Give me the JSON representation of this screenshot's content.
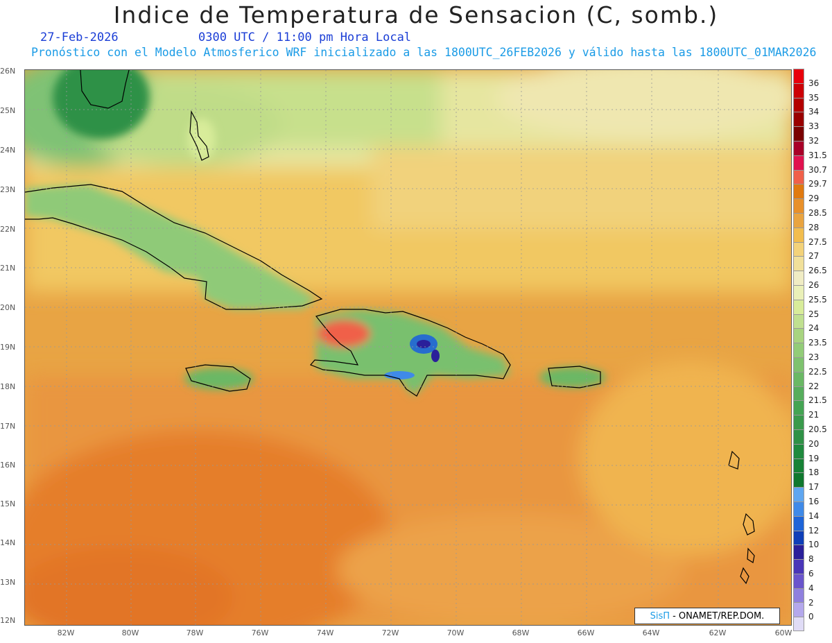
{
  "header": {
    "title": "Indice de Temperatura de Sensacion (C, somb.)",
    "date": "27-Feb-2026",
    "time": "0300 UTC / 11:00 pm Hora Local",
    "subtitle": "Pronóstico con el Modelo Atmosferico WRF inicializado a las 1800UTC_26FEB2026 y válido hasta las  1800UTC_01MAR2026"
  },
  "axes": {
    "lat_labels": [
      "26N",
      "25N",
      "24N",
      "23N",
      "22N",
      "21N",
      "20N",
      "19N",
      "18N",
      "17N",
      "16N",
      "15N",
      "14N",
      "13N",
      "12N"
    ],
    "lon_labels": [
      "82W",
      "80W",
      "78W",
      "76W",
      "74W",
      "72W",
      "70W",
      "68W",
      "66W",
      "64W",
      "62W",
      "60W"
    ]
  },
  "legend": {
    "levels": [
      "36",
      "35",
      "34",
      "33",
      "32",
      "31.5",
      "30.7",
      "29.7",
      "29",
      "28.5",
      "28",
      "27.5",
      "27",
      "26.5",
      "26",
      "25.5",
      "25",
      "24",
      "23.5",
      "23",
      "22.5",
      "22",
      "21.5",
      "21",
      "20.5",
      "20",
      "19",
      "18",
      "17",
      "16",
      "14",
      "12",
      "10",
      "8",
      "6",
      "4",
      "2",
      "0"
    ],
    "colors": [
      "#e8000b",
      "#cc0005",
      "#b30000",
      "#990000",
      "#7a0000",
      "#a80028",
      "#e0124f",
      "#f0604a",
      "#e07a10",
      "#e8902a",
      "#e9a440",
      "#f2bd4e",
      "#f3d27a",
      "#f1e09a",
      "#f0ecc4",
      "#eaf0b8",
      "#d8ec9a",
      "#c0e090",
      "#a8d480",
      "#92cc78",
      "#7ec26e",
      "#6ab865",
      "#56ad5c",
      "#44a453",
      "#3a9a4c",
      "#2f9146",
      "#208a3e",
      "#178236",
      "#10782e",
      "#5fa6f0",
      "#3f8ae8",
      "#1e64d8",
      "#0f3fb8",
      "#2a1f9a",
      "#4a36b8",
      "#6a55cc",
      "#8f80de",
      "#b4a8ec",
      "#e0dcf6"
    ]
  },
  "credit": {
    "brand": "SisΠ",
    "org": "- ONAMET/REP.DOM."
  }
}
